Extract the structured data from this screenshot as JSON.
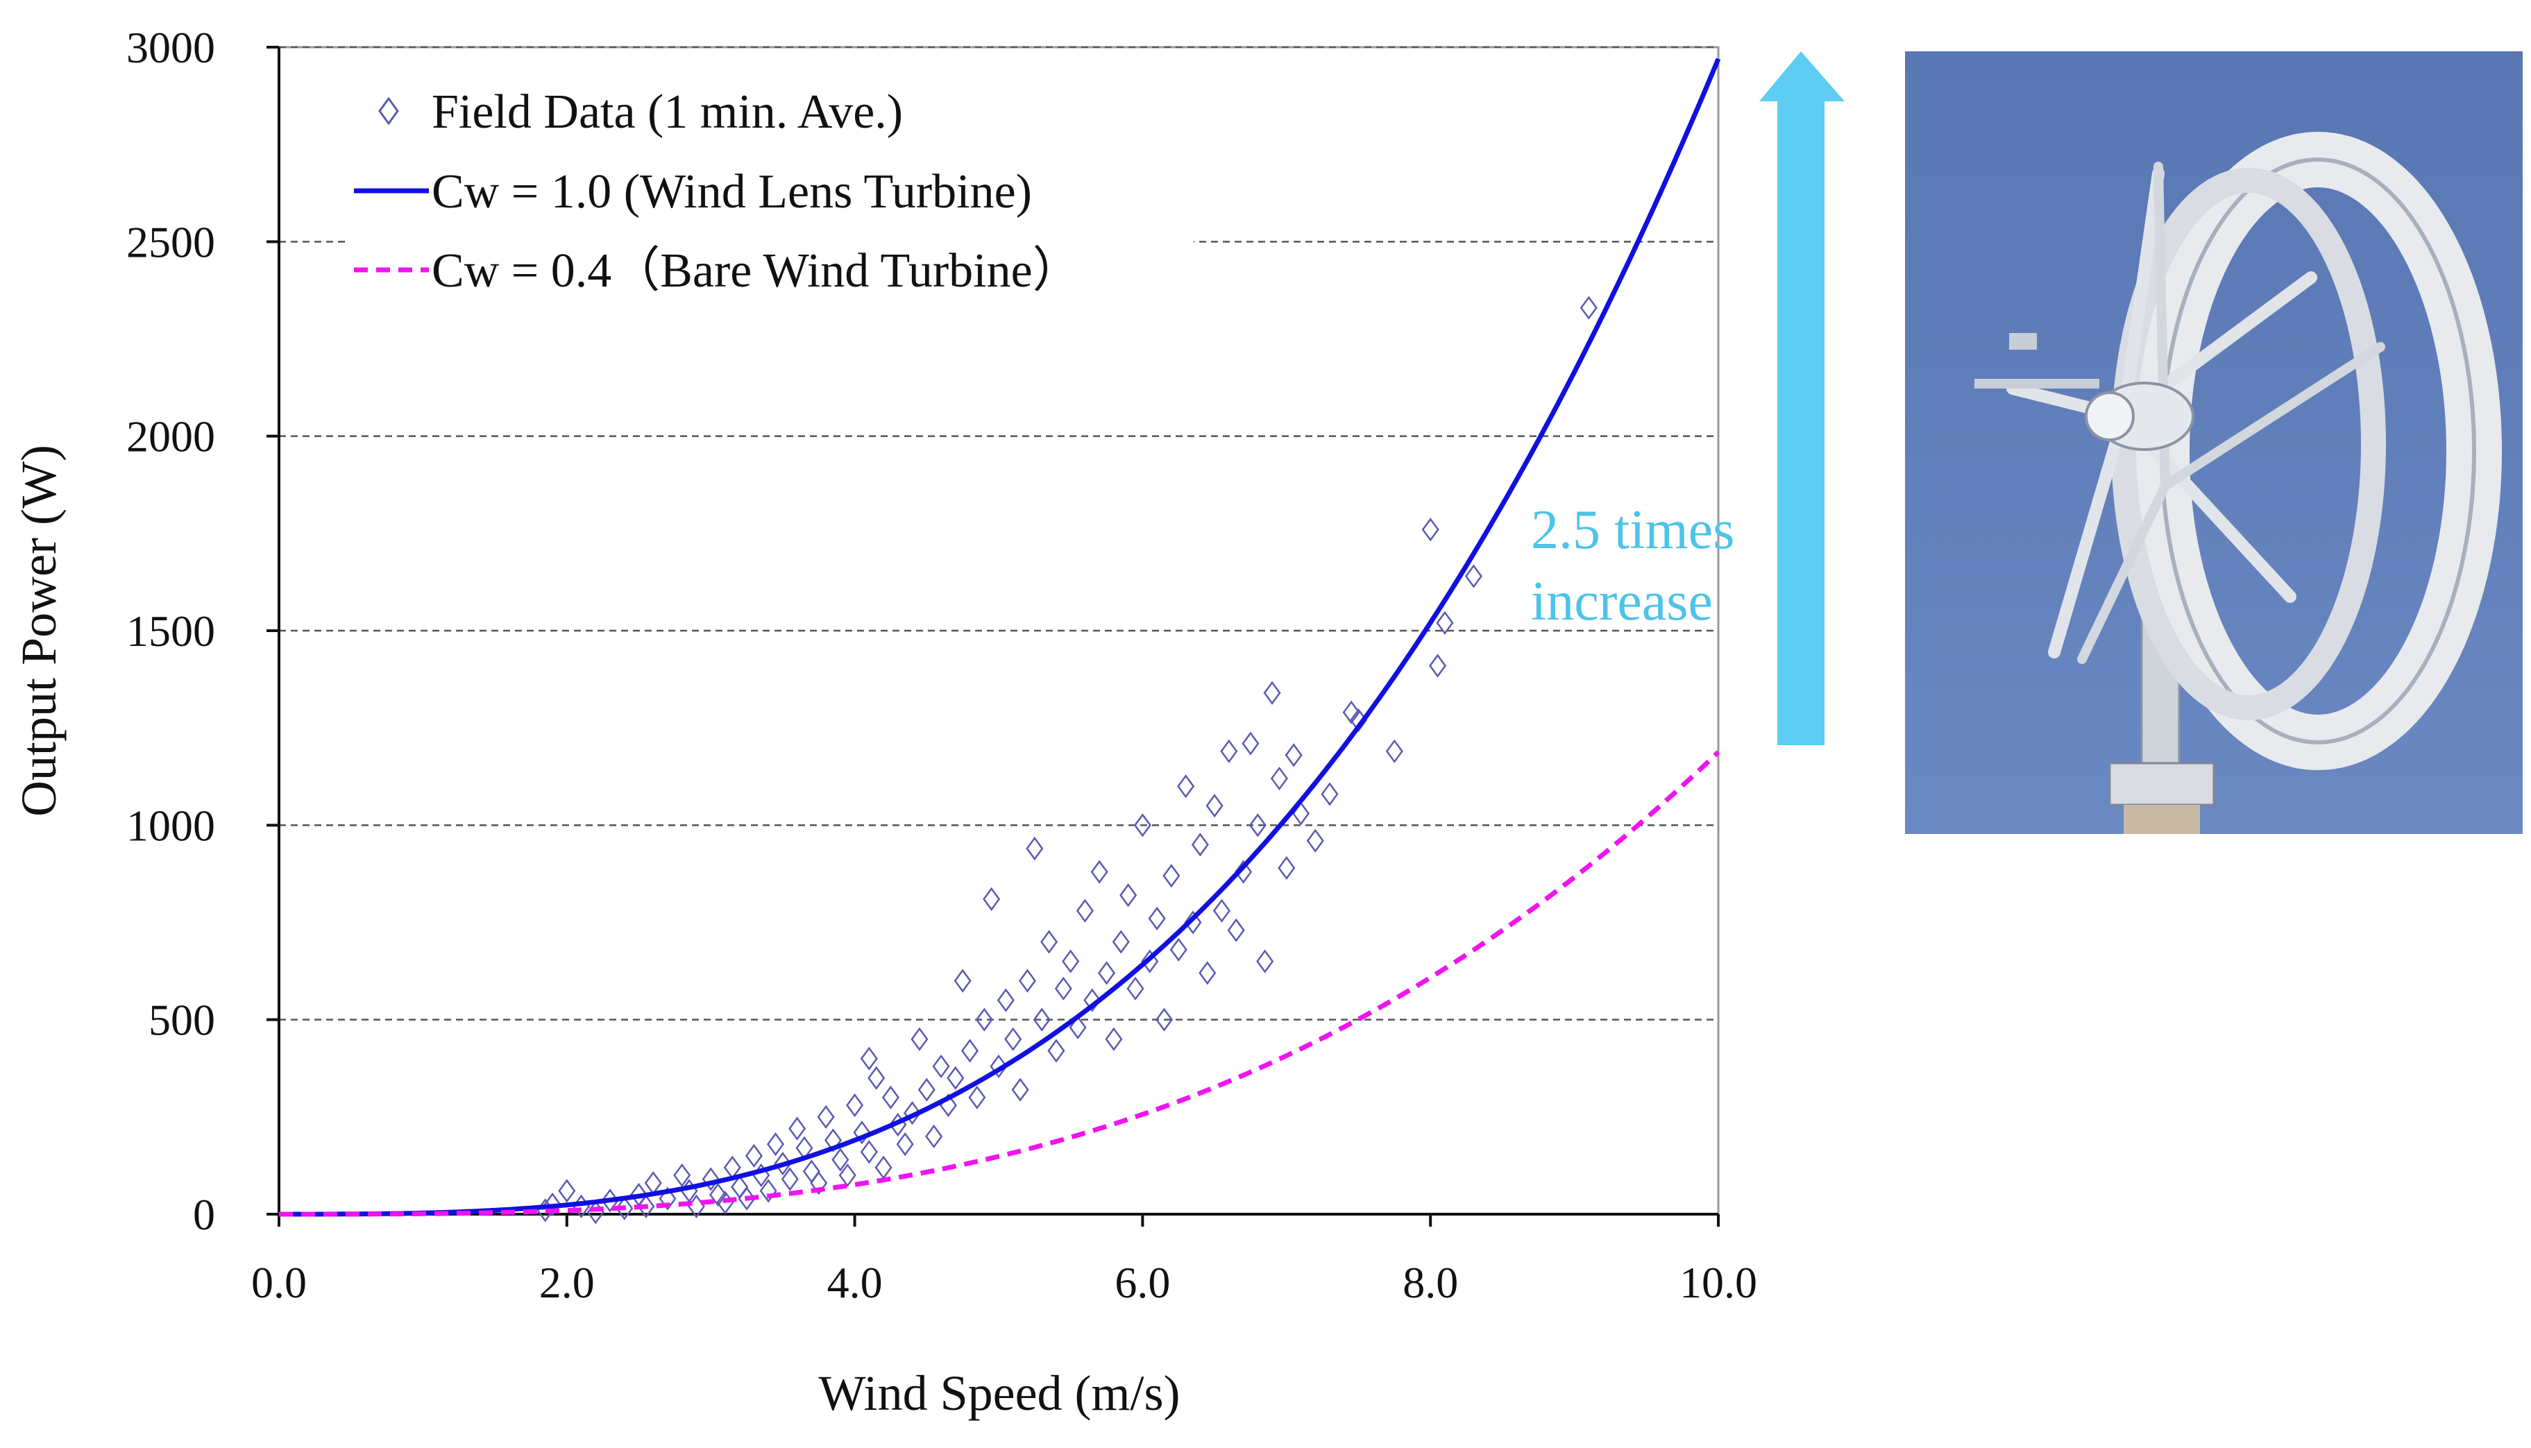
{
  "chart_data": {
    "type": "scatter",
    "xlabel": "Wind Speed  (m/s)",
    "ylabel": "Output Power (W)",
    "xlim": [
      0,
      10
    ],
    "ylim": [
      0,
      3000
    ],
    "x_ticks": [
      "0.0",
      "2.0",
      "4.0",
      "6.0",
      "8.0",
      "10.0"
    ],
    "y_ticks": [
      "0",
      "500",
      "1000",
      "1500",
      "2000",
      "2500",
      "3000"
    ],
    "grid": "horizontal dashed",
    "legend_position": "top-left",
    "legend": [
      {
        "label": "Field Data (1 min. Ave.)",
        "marker": "diamond",
        "color": "#5a5ab4"
      },
      {
        "label": "Cw = 1.0 (Wind Lens Turbine)",
        "line": "solid",
        "color": "#1010e0"
      },
      {
        "label": "Cw = 0.4（Bare Wind Turbine）",
        "line": "dashed",
        "color": "#f014f0"
      }
    ],
    "series": [
      {
        "name": "Cw = 1.0 (Wind Lens Turbine)",
        "model": "P = 2.97 * v^3",
        "x": [
          0,
          1,
          2,
          3,
          4,
          5,
          6,
          7,
          8,
          9,
          10
        ],
        "values": [
          0,
          3,
          24,
          80,
          190,
          371,
          642,
          1019,
          1521,
          2165,
          2970
        ]
      },
      {
        "name": "Cw = 0.4（Bare Wind Turbine）",
        "model": "P = 1.188 * v^3",
        "x": [
          0,
          1,
          2,
          3,
          4,
          5,
          6,
          7,
          8,
          9,
          10
        ],
        "values": [
          0,
          1,
          10,
          32,
          76,
          149,
          257,
          408,
          608,
          866,
          1188
        ]
      },
      {
        "name": "Field Data (1 min. Ave.)",
        "type": "scatter",
        "points": [
          [
            1.85,
            10
          ],
          [
            1.9,
            25
          ],
          [
            2.0,
            60
          ],
          [
            2.1,
            20
          ],
          [
            2.2,
            5
          ],
          [
            2.3,
            35
          ],
          [
            2.4,
            15
          ],
          [
            2.5,
            50
          ],
          [
            2.55,
            20
          ],
          [
            2.6,
            80
          ],
          [
            2.7,
            40
          ],
          [
            2.8,
            100
          ],
          [
            2.85,
            60
          ],
          [
            2.9,
            20
          ],
          [
            3.0,
            90
          ],
          [
            3.05,
            50
          ],
          [
            3.1,
            30
          ],
          [
            3.15,
            120
          ],
          [
            3.2,
            70
          ],
          [
            3.25,
            40
          ],
          [
            3.3,
            150
          ],
          [
            3.35,
            100
          ],
          [
            3.4,
            60
          ],
          [
            3.45,
            180
          ],
          [
            3.5,
            130
          ],
          [
            3.55,
            90
          ],
          [
            3.6,
            220
          ],
          [
            3.65,
            170
          ],
          [
            3.7,
            110
          ],
          [
            3.75,
            80
          ],
          [
            3.8,
            250
          ],
          [
            3.85,
            190
          ],
          [
            3.9,
            140
          ],
          [
            3.95,
            100
          ],
          [
            4.0,
            280
          ],
          [
            4.05,
            210
          ],
          [
            4.1,
            160
          ],
          [
            4.1,
            400
          ],
          [
            4.15,
            350
          ],
          [
            4.2,
            120
          ],
          [
            4.25,
            300
          ],
          [
            4.3,
            230
          ],
          [
            4.35,
            180
          ],
          [
            4.4,
            260
          ],
          [
            4.45,
            450
          ],
          [
            4.5,
            320
          ],
          [
            4.55,
            200
          ],
          [
            4.6,
            380
          ],
          [
            4.65,
            280
          ],
          [
            4.7,
            350
          ],
          [
            4.75,
            600
          ],
          [
            4.8,
            420
          ],
          [
            4.85,
            300
          ],
          [
            4.9,
            500
          ],
          [
            4.95,
            810
          ],
          [
            5.0,
            380
          ],
          [
            5.05,
            550
          ],
          [
            5.1,
            450
          ],
          [
            5.15,
            320
          ],
          [
            5.2,
            600
          ],
          [
            5.25,
            940
          ],
          [
            5.3,
            500
          ],
          [
            5.35,
            700
          ],
          [
            5.4,
            420
          ],
          [
            5.45,
            580
          ],
          [
            5.5,
            650
          ],
          [
            5.55,
            480
          ],
          [
            5.6,
            780
          ],
          [
            5.65,
            550
          ],
          [
            5.7,
            880
          ],
          [
            5.75,
            620
          ],
          [
            5.8,
            450
          ],
          [
            5.85,
            700
          ],
          [
            5.9,
            820
          ],
          [
            5.95,
            580
          ],
          [
            6.0,
            1000
          ],
          [
            6.05,
            650
          ],
          [
            6.1,
            760
          ],
          [
            6.15,
            500
          ],
          [
            6.2,
            870
          ],
          [
            6.25,
            680
          ],
          [
            6.3,
            1100
          ],
          [
            6.35,
            750
          ],
          [
            6.4,
            950
          ],
          [
            6.45,
            620
          ],
          [
            6.5,
            1050
          ],
          [
            6.55,
            780
          ],
          [
            6.6,
            1190
          ],
          [
            6.65,
            730
          ],
          [
            6.7,
            880
          ],
          [
            6.75,
            1210
          ],
          [
            6.8,
            1000
          ],
          [
            6.85,
            650
          ],
          [
            6.9,
            1340
          ],
          [
            6.95,
            1120
          ],
          [
            7.0,
            890
          ],
          [
            7.05,
            1180
          ],
          [
            7.1,
            1030
          ],
          [
            7.2,
            960
          ],
          [
            7.3,
            1080
          ],
          [
            7.45,
            1290
          ],
          [
            7.5,
            1270
          ],
          [
            7.75,
            1190
          ],
          [
            8.0,
            1760
          ],
          [
            8.05,
            1410
          ],
          [
            8.1,
            1520
          ],
          [
            8.3,
            1640
          ],
          [
            9.1,
            2330
          ]
        ]
      }
    ]
  },
  "annotation": {
    "line1": "2.5 times",
    "line2": "increase",
    "color": "#4cc3ea"
  },
  "photo": {
    "subject": "wind lens turbine",
    "sky_color": "#5a78b4"
  }
}
